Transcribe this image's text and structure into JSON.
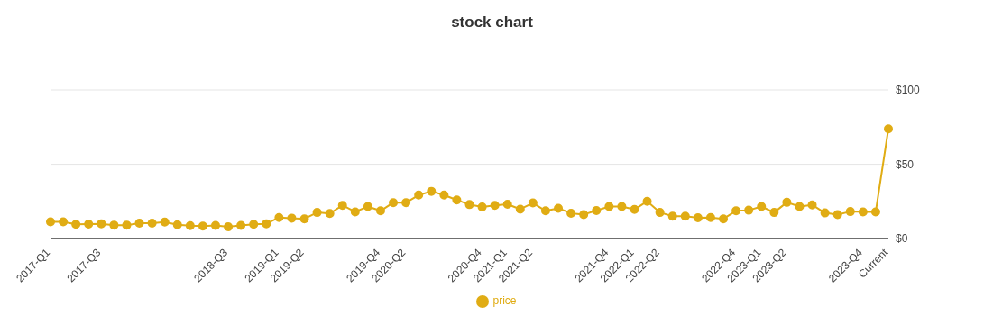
{
  "chart_data": {
    "type": "line",
    "title": "stock chart",
    "categories": [
      "2017-Q1",
      null,
      null,
      null,
      "2017-Q3",
      null,
      null,
      null,
      null,
      null,
      null,
      null,
      null,
      null,
      "2018-Q3",
      null,
      null,
      null,
      "2019-Q1",
      null,
      "2019-Q2",
      null,
      null,
      null,
      null,
      null,
      "2019-Q4",
      null,
      "2020-Q2",
      null,
      null,
      null,
      null,
      null,
      "2020-Q4",
      null,
      "2021-Q1",
      null,
      "2021-Q2",
      null,
      null,
      null,
      null,
      null,
      "2021-Q4",
      null,
      "2022-Q1",
      null,
      "2022-Q2",
      null,
      null,
      null,
      null,
      null,
      "2022-Q4",
      null,
      "2023-Q1",
      null,
      "2023-Q2",
      null,
      null,
      null,
      null,
      null,
      "2023-Q4",
      null,
      "Current"
    ],
    "series": [
      {
        "name": "price",
        "color": "#e0ac14",
        "values": [
          11.3,
          11.3,
          9.6,
          9.8,
          10,
          9.1,
          9.1,
          10.4,
          10.4,
          11.1,
          9.3,
          8.7,
          8.4,
          8.9,
          8,
          8.9,
          9.6,
          10,
          14.2,
          13.8,
          13.3,
          17.6,
          16.9,
          22.4,
          18,
          21.6,
          18.7,
          24.2,
          24.2,
          29.3,
          31.8,
          29.3,
          26,
          22.9,
          21.3,
          22.4,
          23.1,
          19.8,
          24,
          18.7,
          20.4,
          17.1,
          16.2,
          18.9,
          21.6,
          21.6,
          19.6,
          25.1,
          17.6,
          15.1,
          15.1,
          14,
          14.2,
          13.3,
          18.7,
          19.1,
          21.6,
          17.6,
          24.4,
          21.6,
          22.7,
          17.3,
          16.2,
          18.2,
          18,
          18,
          73.8
        ]
      }
    ],
    "ylim": [
      0,
      100
    ],
    "yticks": [
      {
        "value": 0,
        "label": "$0"
      },
      {
        "value": 50,
        "label": "$50"
      },
      {
        "value": 100,
        "label": "$100"
      }
    ],
    "grid": "y",
    "legend": "bottom",
    "marker": "circle",
    "line_style": "solid"
  }
}
